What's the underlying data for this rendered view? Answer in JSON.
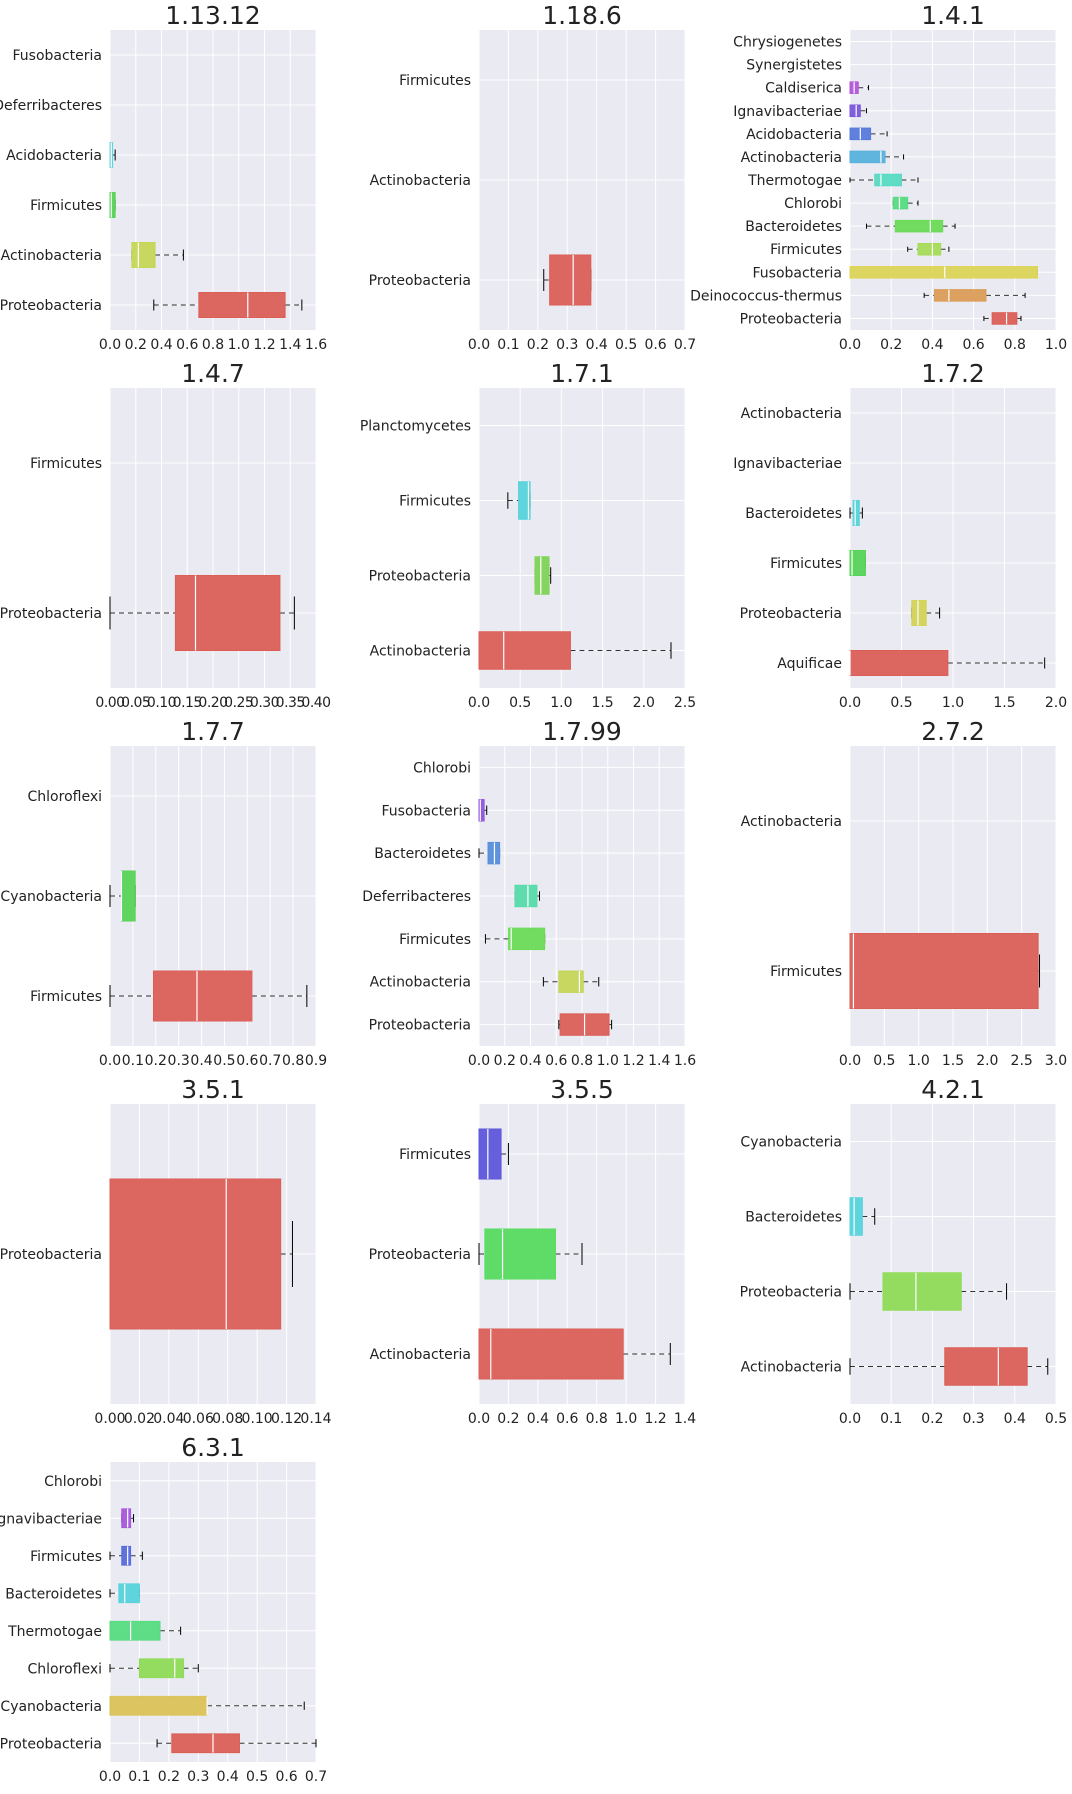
{
  "figure": {
    "style": {
      "background": "#ffffff",
      "plot_background": "#eaeaf2",
      "grid_color": "#ffffff",
      "whisker_color": "#333333"
    }
  },
  "chart_data": [
    {
      "type": "box",
      "orientation": "horizontal",
      "title": "1.13.12",
      "xlim": [
        0,
        1.6
      ],
      "xticks": [
        "0.0",
        "0.2",
        "0.4",
        "0.6",
        "0.8",
        "1.0",
        "1.2",
        "1.4",
        "1.6"
      ],
      "grid": true,
      "categories": [
        "Fusobacteria",
        "Deferribacteres",
        "Acidobacteria",
        "Firmicutes",
        "Actinobacteria",
        "Proteobacteria"
      ],
      "boxes": [
        {
          "label": "Fusobacteria",
          "color": "#db5f57",
          "min": 0,
          "q1": 0,
          "median": 0,
          "q3": 0,
          "max": 0
        },
        {
          "label": "Deferribacteres",
          "color": "#d3d357",
          "min": 0,
          "q1": 0,
          "median": 0,
          "q3": 0,
          "max": 0
        },
        {
          "label": "Acidobacteria",
          "color": "#5fd3db",
          "min": 0,
          "q1": 0,
          "median": 0.01,
          "q3": 0.02,
          "max": 0.04
        },
        {
          "label": "Firmicutes",
          "color": "#57d357",
          "min": 0,
          "q1": 0,
          "median": 0.01,
          "q3": 0.04,
          "max": 0.04
        },
        {
          "label": "Actinobacteria",
          "color": "#c5d657",
          "min": 0.17,
          "q1": 0.17,
          "median": 0.22,
          "q3": 0.35,
          "max": 0.57
        },
        {
          "label": "Proteobacteria",
          "color": "#db5f57",
          "min": 0.34,
          "q1": 0.69,
          "median": 1.07,
          "q3": 1.36,
          "max": 1.49
        }
      ]
    },
    {
      "type": "box",
      "orientation": "horizontal",
      "title": "1.18.6",
      "xlim": [
        0,
        0.7
      ],
      "xticks": [
        "0.0",
        "0.1",
        "0.2",
        "0.3",
        "0.4",
        "0.5",
        "0.6",
        "0.7"
      ],
      "grid": true,
      "categories": [
        "Firmicutes",
        "Actinobacteria",
        "Proteobacteria"
      ],
      "boxes": [
        {
          "label": "Firmicutes",
          "color": "#5fd3db",
          "min": 0,
          "q1": 0,
          "median": 0,
          "q3": 0,
          "max": 0
        },
        {
          "label": "Actinobacteria",
          "color": "#57d357",
          "min": 0,
          "q1": 0,
          "median": 0,
          "q3": 0,
          "max": 0
        },
        {
          "label": "Proteobacteria",
          "color": "#db5f57",
          "min": 0.22,
          "q1": 0.24,
          "median": 0.32,
          "q3": 0.38,
          "max": 0.38
        }
      ]
    },
    {
      "type": "box",
      "orientation": "horizontal",
      "title": "1.4.1",
      "xlim": [
        0,
        1.0
      ],
      "xticks": [
        "0.0",
        "0.2",
        "0.4",
        "0.6",
        "0.8",
        "1.0"
      ],
      "grid": true,
      "categories": [
        "Chrysiogenetes",
        "Synergistetes",
        "Caldiserica",
        "Ignavibacteriae",
        "Acidobacteria",
        "Actinobacteria",
        "Thermotogae",
        "Chlorobi",
        "Bacteroidetes",
        "Firmicutes",
        "Fusobacteria",
        "Deinococcus-thermus",
        "Proteobacteria"
      ],
      "boxes": [
        {
          "label": "Chrysiogenetes",
          "color": "#db57b2",
          "min": 0,
          "q1": 0,
          "median": 0,
          "q3": 0,
          "max": 0
        },
        {
          "label": "Synergistetes",
          "color": "#db57d3",
          "min": 0,
          "q1": 0,
          "median": 0,
          "q3": 0,
          "max": 0
        },
        {
          "label": "Caldiserica",
          "color": "#b257db",
          "min": 0,
          "q1": 0,
          "median": 0.02,
          "q3": 0.04,
          "max": 0.09
        },
        {
          "label": "Ignavibacteriae",
          "color": "#7a57db",
          "min": 0,
          "q1": 0,
          "median": 0.03,
          "q3": 0.05,
          "max": 0.08
        },
        {
          "label": "Acidobacteria",
          "color": "#577adb",
          "min": 0,
          "q1": 0,
          "median": 0.05,
          "q3": 0.1,
          "max": 0.18
        },
        {
          "label": "Actinobacteria",
          "color": "#57b2db",
          "min": 0,
          "q1": 0,
          "median": 0.15,
          "q3": 0.17,
          "max": 0.26
        },
        {
          "label": "Thermotogae",
          "color": "#57dbc0",
          "min": 0,
          "q1": 0.12,
          "median": 0.15,
          "q3": 0.25,
          "max": 0.33
        },
        {
          "label": "Chlorobi",
          "color": "#57db80",
          "min": 0.21,
          "q1": 0.21,
          "median": 0.24,
          "q3": 0.28,
          "max": 0.33
        },
        {
          "label": "Bacteroidetes",
          "color": "#6bdb57",
          "min": 0.08,
          "q1": 0.22,
          "median": 0.39,
          "q3": 0.45,
          "max": 0.51
        },
        {
          "label": "Firmicutes",
          "color": "#a6db57",
          "min": 0.28,
          "q1": 0.33,
          "median": 0.4,
          "q3": 0.44,
          "max": 0.48
        },
        {
          "label": "Fusobacteria",
          "color": "#dbd557",
          "min": 0,
          "q1": 0,
          "median": 0.46,
          "q3": 0.91,
          "max": 0.91
        },
        {
          "label": "Deinococcus-thermus",
          "color": "#db9d57",
          "min": 0.36,
          "q1": 0.41,
          "median": 0.48,
          "q3": 0.66,
          "max": 0.85
        },
        {
          "label": "Proteobacteria",
          "color": "#db5f57",
          "min": 0.65,
          "q1": 0.69,
          "median": 0.76,
          "q3": 0.81,
          "max": 0.83
        }
      ]
    },
    {
      "type": "box",
      "orientation": "horizontal",
      "title": "1.4.7",
      "xlim": [
        0,
        0.4
      ],
      "xticks": [
        "0.00",
        "0.05",
        "0.10",
        "0.15",
        "0.20",
        "0.25",
        "0.30",
        "0.35",
        "0.40"
      ],
      "tick_label_overlap": true,
      "grid": true,
      "categories": [
        "Firmicutes",
        "Proteobacteria"
      ],
      "boxes": [
        {
          "label": "Firmicutes",
          "color": "#57d357",
          "min": 0,
          "q1": 0,
          "median": 0,
          "q3": 0,
          "max": 0
        },
        {
          "label": "Proteobacteria",
          "color": "#db5f57",
          "min": 0,
          "q1": 0.127,
          "median": 0.166,
          "q3": 0.33,
          "max": 0.358
        }
      ]
    },
    {
      "type": "box",
      "orientation": "horizontal",
      "title": "1.7.1",
      "xlim": [
        0,
        2.5
      ],
      "xticks": [
        "0.0",
        "0.5",
        "1.0",
        "1.5",
        "2.0",
        "2.5"
      ],
      "grid": true,
      "categories": [
        "Planctomycetes",
        "Firmicutes",
        "Proteobacteria",
        "Actinobacteria"
      ],
      "boxes": [
        {
          "label": "Planctomycetes",
          "color": "#8f57db",
          "min": 0,
          "q1": 0,
          "median": 0,
          "q3": 0,
          "max": 0
        },
        {
          "label": "Firmicutes",
          "color": "#57d3db",
          "min": 0.35,
          "q1": 0.48,
          "median": 0.6,
          "q3": 0.62,
          "max": 0.62
        },
        {
          "label": "Proteobacteria",
          "color": "#7fd357",
          "min": 0.68,
          "q1": 0.68,
          "median": 0.75,
          "q3": 0.85,
          "max": 0.87
        },
        {
          "label": "Actinobacteria",
          "color": "#db5f57",
          "min": 0,
          "q1": 0,
          "median": 0.3,
          "q3": 1.11,
          "max": 2.33
        }
      ]
    },
    {
      "type": "box",
      "orientation": "horizontal",
      "title": "1.7.2",
      "xlim": [
        0,
        2.0
      ],
      "xticks": [
        "0.0",
        "0.5",
        "1.0",
        "1.5",
        "2.0"
      ],
      "grid": true,
      "categories": [
        "Actinobacteria",
        "Ignavibacteriae",
        "Bacteroidetes",
        "Firmicutes",
        "Proteobacteria",
        "Aquificae"
      ],
      "boxes": [
        {
          "label": "Actinobacteria",
          "color": "#db57b2",
          "min": 0,
          "q1": 0,
          "median": 0,
          "q3": 0,
          "max": 0
        },
        {
          "label": "Ignavibacteriae",
          "color": "#7a57db",
          "min": 0,
          "q1": 0,
          "median": 0,
          "q3": 0,
          "max": 0
        },
        {
          "label": "Bacteroidetes",
          "color": "#57d3db",
          "min": 0,
          "q1": 0.03,
          "median": 0.05,
          "q3": 0.09,
          "max": 0.12
        },
        {
          "label": "Firmicutes",
          "color": "#57d357",
          "min": 0,
          "q1": 0,
          "median": 0.02,
          "q3": 0.15,
          "max": 0.15
        },
        {
          "label": "Proteobacteria",
          "color": "#d3d357",
          "min": 0.6,
          "q1": 0.6,
          "median": 0.66,
          "q3": 0.74,
          "max": 0.87
        },
        {
          "label": "Aquificae",
          "color": "#db5f57",
          "min": 0,
          "q1": 0,
          "median": 0,
          "q3": 0.95,
          "max": 1.89
        }
      ]
    },
    {
      "type": "box",
      "orientation": "horizontal",
      "title": "1.7.7",
      "xlim": [
        0,
        0.9
      ],
      "xticks": [
        "0.0",
        "0.1",
        "0.2",
        "0.3",
        "0.4",
        "0.5",
        "0.6",
        "0.7",
        "0.8",
        "0.9"
      ],
      "grid": true,
      "categories": [
        "Chloroflexi",
        "Cyanobacteria",
        "Firmicutes"
      ],
      "boxes": [
        {
          "label": "Chloroflexi",
          "color": "#5f7adb",
          "min": 0,
          "q1": 0,
          "median": 0,
          "q3": 0,
          "max": 0
        },
        {
          "label": "Cyanobacteria",
          "color": "#57d357",
          "min": 0,
          "q1": 0.05,
          "median": 0.05,
          "q3": 0.11,
          "max": 0.11
        },
        {
          "label": "Firmicutes",
          "color": "#db5f57",
          "min": 0,
          "q1": 0.19,
          "median": 0.38,
          "q3": 0.62,
          "max": 0.86
        }
      ]
    },
    {
      "type": "box",
      "orientation": "horizontal",
      "title": "1.7.99",
      "xlim": [
        0,
        1.6
      ],
      "xticks": [
        "0.0",
        "0.2",
        "0.4",
        "0.6",
        "0.8",
        "1.0",
        "1.2",
        "1.4",
        "1.6"
      ],
      "grid": true,
      "categories": [
        "Chlorobi",
        "Fusobacteria",
        "Bacteroidetes",
        "Deferribacteres",
        "Firmicutes",
        "Actinobacteria",
        "Proteobacteria"
      ],
      "boxes": [
        {
          "label": "Chlorobi",
          "color": "#db57b2",
          "min": 0,
          "q1": 0,
          "median": 0,
          "q3": 0,
          "max": 0
        },
        {
          "label": "Fusobacteria",
          "color": "#8f57db",
          "min": 0,
          "q1": 0,
          "median": 0.01,
          "q3": 0.04,
          "max": 0.06
        },
        {
          "label": "Bacteroidetes",
          "color": "#578fdb",
          "min": 0,
          "q1": 0.07,
          "median": 0.12,
          "q3": 0.16,
          "max": 0.16
        },
        {
          "label": "Deferribacteres",
          "color": "#57dbaa",
          "min": 0.28,
          "q1": 0.28,
          "median": 0.38,
          "q3": 0.45,
          "max": 0.47
        },
        {
          "label": "Firmicutes",
          "color": "#6bdb57",
          "min": 0.05,
          "q1": 0.23,
          "median": 0.25,
          "q3": 0.51,
          "max": 0.51
        },
        {
          "label": "Actinobacteria",
          "color": "#c5d657",
          "min": 0.5,
          "q1": 0.62,
          "median": 0.78,
          "q3": 0.81,
          "max": 0.93
        },
        {
          "label": "Proteobacteria",
          "color": "#db5f57",
          "min": 0.62,
          "q1": 0.63,
          "median": 0.82,
          "q3": 1.01,
          "max": 1.03
        }
      ]
    },
    {
      "type": "box",
      "orientation": "horizontal",
      "title": "2.7.2",
      "xlim": [
        0,
        3.0
      ],
      "xticks": [
        "0.0",
        "0.5",
        "1.0",
        "1.5",
        "2.0",
        "2.5",
        "3.0"
      ],
      "grid": true,
      "categories": [
        "Actinobacteria",
        "Firmicutes"
      ],
      "boxes": [
        {
          "label": "Actinobacteria",
          "color": "#57d357",
          "min": 0,
          "q1": 0,
          "median": 0,
          "q3": 0,
          "max": 0
        },
        {
          "label": "Firmicutes",
          "color": "#db5f57",
          "min": 0,
          "q1": 0,
          "median": 0.05,
          "q3": 2.74,
          "max": 2.76
        }
      ]
    },
    {
      "type": "box",
      "orientation": "horizontal",
      "title": "3.5.1",
      "xlim": [
        0,
        0.14
      ],
      "xticks": [
        "0.00",
        "0.02",
        "0.04",
        "0.06",
        "0.08",
        "0.10",
        "0.12",
        "0.14"
      ],
      "grid": true,
      "categories": [
        "Proteobacteria"
      ],
      "boxes": [
        {
          "label": "Proteobacteria",
          "color": "#db5f57",
          "min": 0,
          "q1": 0,
          "median": 0.079,
          "q3": 0.116,
          "max": 0.124
        }
      ]
    },
    {
      "type": "box",
      "orientation": "horizontal",
      "title": "3.5.5",
      "xlim": [
        0,
        1.4
      ],
      "xticks": [
        "0.0",
        "0.2",
        "0.4",
        "0.6",
        "0.8",
        "1.0",
        "1.2",
        "1.4"
      ],
      "grid": true,
      "categories": [
        "Firmicutes",
        "Proteobacteria",
        "Actinobacteria"
      ],
      "boxes": [
        {
          "label": "Firmicutes",
          "color": "#5f57db",
          "min": 0,
          "q1": 0,
          "median": 0.06,
          "q3": 0.15,
          "max": 0.2
        },
        {
          "label": "Proteobacteria",
          "color": "#57db5f",
          "min": 0,
          "q1": 0.04,
          "median": 0.16,
          "q3": 0.52,
          "max": 0.7
        },
        {
          "label": "Actinobacteria",
          "color": "#db5f57",
          "min": 0,
          "q1": 0,
          "median": 0.08,
          "q3": 0.98,
          "max": 1.3
        }
      ]
    },
    {
      "type": "box",
      "orientation": "horizontal",
      "title": "4.2.1",
      "xlim": [
        0,
        0.5
      ],
      "xticks": [
        "0.0",
        "0.1",
        "0.2",
        "0.3",
        "0.4",
        "0.5"
      ],
      "grid": true,
      "categories": [
        "Cyanobacteria",
        "Bacteroidetes",
        "Proteobacteria",
        "Actinobacteria"
      ],
      "boxes": [
        {
          "label": "Cyanobacteria",
          "color": "#8f57db",
          "min": 0,
          "q1": 0,
          "median": 0,
          "q3": 0,
          "max": 0
        },
        {
          "label": "Bacteroidetes",
          "color": "#57d3db",
          "min": 0,
          "q1": 0,
          "median": 0.01,
          "q3": 0.03,
          "max": 0.06
        },
        {
          "label": "Proteobacteria",
          "color": "#8fdb57",
          "min": 0,
          "q1": 0.08,
          "median": 0.16,
          "q3": 0.27,
          "max": 0.38
        },
        {
          "label": "Actinobacteria",
          "color": "#db5f57",
          "min": 0,
          "q1": 0.23,
          "median": 0.36,
          "q3": 0.43,
          "max": 0.48
        }
      ]
    },
    {
      "type": "box",
      "orientation": "horizontal",
      "title": "6.3.1",
      "xlim": [
        0,
        0.7
      ],
      "xticks": [
        "0.0",
        "0.1",
        "0.2",
        "0.3",
        "0.4",
        "0.5",
        "0.6",
        "0.7"
      ],
      "grid": true,
      "categories": [
        "Chlorobi",
        "Ignavibacteriae",
        "Firmicutes",
        "Bacteroidetes",
        "Thermotogae",
        "Chloroflexi",
        "Cyanobacteria",
        "Proteobacteria"
      ],
      "boxes": [
        {
          "label": "Chlorobi",
          "color": "#db57b2",
          "min": 0,
          "q1": 0,
          "median": 0,
          "q3": 0,
          "max": 0
        },
        {
          "label": "Ignavibacteriae",
          "color": "#a657db",
          "min": 0.04,
          "q1": 0.04,
          "median": 0.06,
          "q3": 0.07,
          "max": 0.08
        },
        {
          "label": "Firmicutes",
          "color": "#576bdb",
          "min": 0,
          "q1": 0.04,
          "median": 0.06,
          "q3": 0.07,
          "max": 0.11
        },
        {
          "label": "Bacteroidetes",
          "color": "#57d3db",
          "min": 0,
          "q1": 0.03,
          "median": 0.05,
          "q3": 0.1,
          "max": 0.1
        },
        {
          "label": "Thermotogae",
          "color": "#57db80",
          "min": 0,
          "q1": 0,
          "median": 0.07,
          "q3": 0.17,
          "max": 0.24
        },
        {
          "label": "Chloroflexi",
          "color": "#8fdb57",
          "min": 0,
          "q1": 0.1,
          "median": 0.22,
          "q3": 0.25,
          "max": 0.3
        },
        {
          "label": "Cyanobacteria",
          "color": "#dbc257",
          "min": 0,
          "q1": 0,
          "median": 0.33,
          "q3": 0.33,
          "max": 0.66
        },
        {
          "label": "Proteobacteria",
          "color": "#db5f57",
          "min": 0.16,
          "q1": 0.21,
          "median": 0.35,
          "q3": 0.44,
          "max": 0.7
        }
      ]
    }
  ]
}
